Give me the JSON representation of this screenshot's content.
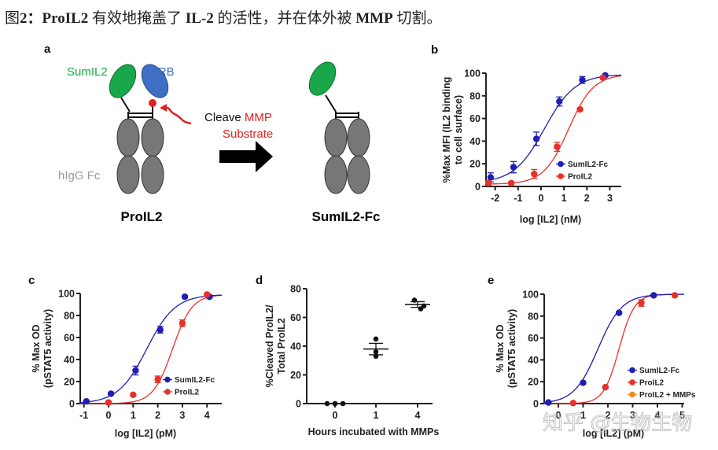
{
  "title": {
    "prefix": "图",
    "num": "2：",
    "name": "ProIL2",
    "mid": " 有效地掩盖了 ",
    "il2": "IL-2",
    "mid2": " 的活性，并在体外被 ",
    "mmp": "MMP",
    "end": " 切割。"
  },
  "watermark": "知乎 @生物生物",
  "panel_a": {
    "letter": "a",
    "sumil2_label": "SumIL2",
    "il2rb_label": "IL2RB",
    "cleave_text": "Cleave ",
    "mmp_text": "MMP",
    "substrate_text": "Substrate",
    "fc_label": "hIgG Fc",
    "left_name": "ProIL2",
    "right_name": "SumIL2-Fc",
    "colors": {
      "sumil2": "#1aa64a",
      "il2rb": "#3f6fc4",
      "fc": "#7a7a7a",
      "substrate": "#e02020"
    }
  },
  "chart_data": [
    {
      "panel": "b",
      "type": "scatter",
      "ylabel": [
        "%Max MFI (IL2 binding",
        "to cell surface)"
      ],
      "xlabel": "log [IL2] (nM)",
      "xlim": [
        -2.4,
        3.5
      ],
      "ylim": [
        0,
        100
      ],
      "xticks": [
        -2,
        -1,
        0,
        1,
        2,
        3
      ],
      "yticks": [
        0,
        20,
        40,
        60,
        80,
        100
      ],
      "legend": "bottom-right",
      "series": [
        {
          "name": "SumIL2-Fc",
          "color": "#1f1fb4",
          "x": [
            -2.2,
            -1.2,
            -0.2,
            0.8,
            1.8,
            2.8
          ],
          "y": [
            8,
            17,
            42,
            75,
            94,
            98
          ],
          "err": [
            4,
            5,
            6,
            4,
            3,
            1
          ],
          "fit": {
            "bottom": 3,
            "top": 99,
            "logEC50": 0.15,
            "hill": 0.65
          }
        },
        {
          "name": "ProIL2",
          "color": "#e8302a",
          "x": [
            -2.3,
            -1.3,
            -0.3,
            0.7,
            1.7,
            2.7
          ],
          "y": [
            3,
            3,
            11,
            35,
            68,
            96
          ],
          "err": [
            2,
            1,
            4,
            4,
            1,
            1
          ],
          "fit": {
            "bottom": 2,
            "top": 99,
            "logEC50": 1.2,
            "hill": 0.8
          }
        }
      ]
    },
    {
      "panel": "c",
      "type": "scatter",
      "ylabel": [
        "% Max OD",
        "(pSTAT5 activity)"
      ],
      "xlabel": "log [IL2] (pM)",
      "xlim": [
        -1.15,
        4.6
      ],
      "ylim": [
        0,
        100
      ],
      "xticks": [
        -1,
        0,
        1,
        2,
        3,
        4
      ],
      "yticks": [
        0,
        20,
        40,
        60,
        80,
        100
      ],
      "legend": "bottom-right",
      "series": [
        {
          "name": "SumIL2-Fc",
          "color": "#1f1fb4",
          "x": [
            -0.9,
            0.1,
            1.1,
            2.1,
            3.1,
            4.1
          ],
          "y": [
            2,
            9,
            30,
            67,
            97,
            97
          ],
          "err": [
            1,
            1,
            4,
            3,
            1,
            1
          ],
          "fit": {
            "bottom": 0,
            "top": 99,
            "logEC50": 1.55,
            "hill": 0.75
          }
        },
        {
          "name": "ProIL2",
          "color": "#e8302a",
          "x": [
            0,
            1,
            2,
            3,
            4
          ],
          "y": [
            1,
            8,
            22,
            73,
            99
          ],
          "err": [
            1,
            1,
            3,
            3,
            1
          ],
          "fit": {
            "bottom": 0,
            "top": 99,
            "logEC50": 2.6,
            "hill": 1.1
          }
        }
      ]
    },
    {
      "panel": "d",
      "type": "scatter",
      "ylabel": [
        "%Cleaved ProIL2/",
        "Total ProIL2"
      ],
      "xlabel": "Hours incubated with MMPs",
      "categories": [
        "0",
        "1",
        "4"
      ],
      "ylim": [
        0,
        80
      ],
      "yticks": [
        0,
        20,
        40,
        60,
        80
      ],
      "points": [
        [
          0,
          0,
          0
        ],
        [
          45,
          36,
          33
        ],
        [
          72,
          66,
          68
        ]
      ],
      "mean": [
        0,
        38,
        69
      ],
      "sem": [
        0,
        4,
        2
      ],
      "color": "#111111"
    },
    {
      "panel": "e",
      "type": "scatter",
      "ylabel": [
        "% Max OD",
        "(pSTAT5 activity)"
      ],
      "xlabel": "log [IL2] (pM)",
      "xlim": [
        -0.57,
        5.08
      ],
      "ylim": [
        0,
        100
      ],
      "xticks": [
        0,
        1,
        2,
        3,
        4,
        5
      ],
      "yticks": [
        0,
        20,
        40,
        60,
        80,
        100
      ],
      "legend": "bottom-right",
      "series": [
        {
          "name": "SumIL2-Fc",
          "color": "#1f1fb4",
          "x": [
            -0.4,
            1,
            2.45,
            3.85
          ],
          "y": [
            1,
            19,
            83,
            99
          ],
          "err": [
            0,
            1,
            1,
            1
          ],
          "fit": {
            "bottom": 0,
            "top": 100,
            "logEC50": 1.6,
            "hill": 0.9
          }
        },
        {
          "name": "ProIL2",
          "color": "#e8302a",
          "x": [
            0.6,
            1.9,
            3.35,
            4.7
          ],
          "y": [
            0.5,
            15,
            92,
            99
          ],
          "err": [
            0,
            1,
            3,
            1
          ],
          "fit": {
            "bottom": 0,
            "top": 100,
            "logEC50": 2.45,
            "hill": 1.4
          }
        },
        {
          "name": "ProIL2 + MMPs",
          "color": "#f08a24",
          "x": [],
          "y": [],
          "err": [],
          "fit": {
            "bottom": 0,
            "top": 100,
            "logEC50": 1.6,
            "hill": 0.9
          }
        }
      ]
    }
  ]
}
